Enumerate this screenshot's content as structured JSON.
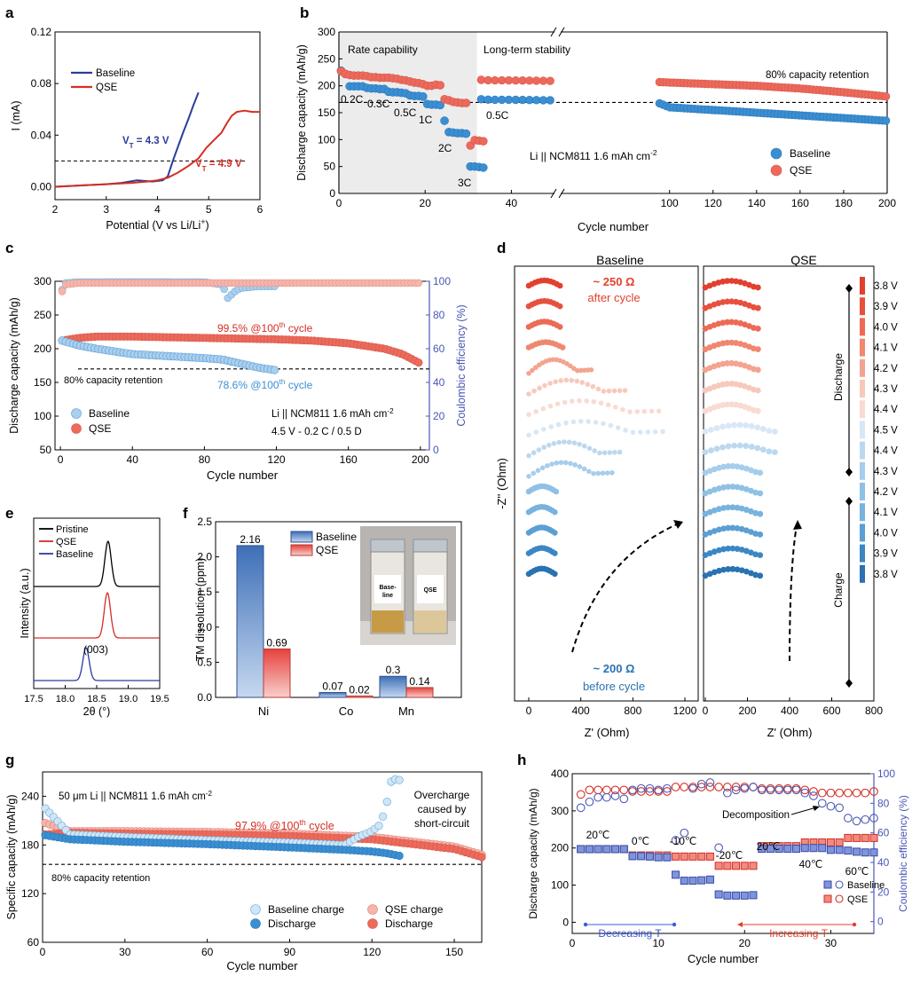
{
  "colors": {
    "baseline": "#3a8fd3",
    "baseline_light": "#a9d0ee",
    "qse": "#ec6a5c",
    "qse_light": "#f6b5ac",
    "navy": "#2b3d9a",
    "red": "#d42e24",
    "shade": "#ececec"
  },
  "chart_data": [
    {
      "panel": "a",
      "type": "line",
      "xlabel": "Potential (V vs Li/Li⁺)",
      "ylabel": "I (mA)",
      "xlim": [
        2,
        6
      ],
      "ylim": [
        -0.01,
        0.12
      ],
      "xticks": [
        2,
        3,
        4,
        5,
        6
      ],
      "yticks": [
        0,
        0.04,
        0.08,
        0.12
      ],
      "ytick_labels": [
        "0.00",
        "0.04",
        "0.08",
        "0.12"
      ],
      "legend": [
        "Baseline",
        "QSE"
      ],
      "threshold_y": 0.02,
      "annotations": [
        "V_T = 4.3 V",
        "V_T = 4.9 V"
      ],
      "ann_prefix": "V",
      "ann_sub": "T",
      "ann_values": [
        " = 4.3 V",
        " = 4.9 V"
      ],
      "series": [
        {
          "name": "Baseline",
          "x": [
            2,
            2.5,
            3,
            3.3,
            3.6,
            3.9,
            4.1,
            4.2,
            4.3,
            4.4,
            4.5,
            4.6,
            4.7,
            4.8
          ],
          "y": [
            0,
            0.001,
            0.002,
            0.003,
            0.005,
            0.004,
            0.005,
            0.008,
            0.02,
            0.031,
            0.042,
            0.052,
            0.063,
            0.073
          ]
        },
        {
          "name": "QSE",
          "x": [
            2,
            2.5,
            3,
            3.5,
            3.8,
            4,
            4.2,
            4.4,
            4.6,
            4.8,
            4.95,
            5.1,
            5.25,
            5.35,
            5.45,
            5.55,
            5.7,
            5.85,
            6
          ],
          "y": [
            0,
            0.001,
            0.002,
            0.003,
            0.004,
            0.005,
            0.007,
            0.011,
            0.016,
            0.022,
            0.03,
            0.036,
            0.042,
            0.049,
            0.055,
            0.058,
            0.059,
            0.058,
            0.058
          ]
        }
      ]
    },
    {
      "panel": "b",
      "type": "scatter",
      "xlabel": "Cycle number",
      "ylabel": "Discharge capacity (mAh/g)",
      "ylim": [
        0,
        300
      ],
      "yticks": [
        0,
        50,
        100,
        150,
        200,
        250,
        300
      ],
      "xticks_left": [
        0,
        20,
        40
      ],
      "xticks_right": [
        100,
        120,
        140,
        160,
        180,
        200
      ],
      "regions": [
        "Rate capability",
        "Long-term stability"
      ],
      "rate_labels": [
        "0.2C",
        "0.3C",
        "0.5C",
        "1C",
        "2C",
        "3C",
        "0.5C"
      ],
      "retention_label": "80% capacity retention",
      "retention_y": 169,
      "cell_label": "Li || NCM811 1.6 mAh cm",
      "cell_sup": "-2",
      "legend": [
        "Baseline",
        "QSE"
      ],
      "rate_series": {
        "Baseline": [
          228,
          222,
          199,
          199,
          199,
          199,
          196,
          195,
          195,
          194,
          194,
          189,
          188,
          188,
          187,
          186,
          182,
          181,
          181,
          180,
          166,
          165,
          165,
          164,
          135,
          114,
          113,
          112,
          112,
          111,
          50,
          50,
          49,
          48
        ],
        "QSE": [
          227,
          222,
          220,
          219,
          219,
          219,
          218,
          216,
          216,
          215,
          215,
          215,
          214,
          213,
          211,
          210,
          208,
          206,
          205,
          203,
          200,
          200,
          202,
          201,
          175,
          173,
          170,
          169,
          168,
          168,
          89,
          99,
          98,
          97
        ]
      },
      "long_term": {
        "Baseline": {
          "cycles": [
            33,
            35,
            40,
            50,
            95,
            97,
            100,
            120,
            140,
            160,
            180,
            200
          ],
          "values": [
            175,
            174,
            174,
            173,
            168,
            165,
            160,
            155,
            150,
            145,
            140,
            135
          ]
        },
        "QSE": {
          "cycles": [
            33,
            35,
            40,
            50,
            95,
            100,
            120,
            140,
            160,
            180,
            200
          ],
          "values": [
            211,
            210,
            210,
            209,
            207,
            206,
            203,
            200,
            195,
            188,
            180
          ]
        }
      }
    },
    {
      "panel": "c",
      "type": "scatter",
      "xlabel": "Cycle number",
      "ylabel": "Discharge capacity (mAh/g)",
      "y2label": "Coulombic efficiency (%)",
      "xlim": [
        0,
        200
      ],
      "ylim": [
        50,
        300
      ],
      "y2lim": [
        0,
        100
      ],
      "xticks": [
        0,
        40,
        80,
        120,
        160,
        200
      ],
      "yticks": [
        50,
        100,
        150,
        200,
        250,
        300
      ],
      "y2ticks": [
        0,
        20,
        40,
        60,
        80,
        100
      ],
      "legend": [
        "Baseline",
        "QSE"
      ],
      "annotations": {
        "qse_retention": "99.5% @100",
        "baseline_retention": "78.6% @100",
        "sup": "th",
        "suffix": " cycle",
        "retention_label": "80% capacity retention"
      },
      "cell_label": "Li || NCM811 1.6 mAh cm",
      "cell_sup": "-2",
      "protocol": "4.5 V - 0.2 C / 0.5 D",
      "retention_y": 170,
      "series": [
        {
          "name": "Baseline capacity",
          "x": [
            1,
            10,
            20,
            30,
            40,
            60,
            80,
            90,
            100,
            110,
            120
          ],
          "y": [
            212,
            205,
            200,
            196,
            192,
            189,
            186,
            184,
            178,
            172,
            168
          ]
        },
        {
          "name": "QSE capacity",
          "x": [
            1,
            10,
            20,
            40,
            60,
            80,
            100,
            120,
            140,
            160,
            180,
            190,
            200
          ],
          "y": [
            212,
            216,
            218,
            218,
            217,
            216,
            215,
            214,
            212,
            208,
            200,
            192,
            178
          ]
        },
        {
          "name": "Baseline CE",
          "x": [
            1,
            3,
            10,
            40,
            80,
            90,
            93,
            95,
            97,
            100,
            110,
            120
          ],
          "y": [
            95,
            99,
            99.5,
            99.6,
            99.5,
            98,
            90,
            92,
            94,
            96,
            97,
            97
          ]
        },
        {
          "name": "QSE CE",
          "x": [
            1,
            3,
            10,
            40,
            80,
            120,
            160,
            200
          ],
          "y": [
            94,
            98,
            99,
            99,
            99,
            99,
            99,
            99
          ]
        }
      ]
    },
    {
      "panel": "d",
      "type": "line",
      "xlabel": "Z' (Ohm)",
      "ylabel": "-Z'' (Ohm)",
      "titles": [
        "Baseline",
        "QSE"
      ],
      "xticks_left": [
        0,
        400,
        800,
        1200
      ],
      "xticks_right": [
        0,
        200,
        400,
        600,
        800
      ],
      "annotations": {
        "top_value": "~ 250 Ω",
        "top_text": "after cycle",
        "bottom_value": "~ 200 Ω",
        "bottom_text": "before cycle"
      },
      "voltages": [
        "3.8 V",
        "3.9 V",
        "4.0 V",
        "4.1 V",
        "4.2 V",
        "4.3 V",
        "4.4 V",
        "4.5 V",
        "4.4 V",
        "4.3 V",
        "4.2 V",
        "4.1 V",
        "4.0 V",
        "3.9 V",
        "3.8 V"
      ],
      "steps": [
        "Discharge",
        "Charge"
      ],
      "baseline_arc_ohm": [
        240,
        240,
        240,
        260,
        480,
        740,
        1000,
        1030,
        700,
        640,
        210,
        200,
        200,
        200,
        200
      ],
      "qse_arc_ohm": [
        250,
        250,
        250,
        250,
        250,
        250,
        250,
        330,
        330,
        260,
        260,
        260,
        260,
        260,
        260
      ]
    },
    {
      "panel": "e",
      "type": "line",
      "xlabel": "2θ (°)",
      "ylabel": "Intensity (a.u.)",
      "xlim": [
        17.5,
        19.5
      ],
      "xticks": [
        17.5,
        18.0,
        18.5,
        19.0,
        19.5
      ],
      "xtick_labels": [
        "17.5",
        "18.0",
        "18.5",
        "19.0",
        "19.5"
      ],
      "legend": [
        "Pristine",
        "QSE",
        "Baseline"
      ],
      "peak_label": "(003)",
      "peak_positions": {
        "Pristine": 18.68,
        "QSE": 18.67,
        "Baseline": 18.33
      }
    },
    {
      "panel": "f",
      "type": "bar",
      "ylabel": "TM dissolution (ppm)",
      "categories": [
        "Ni",
        "Co",
        "Mn"
      ],
      "ylim": [
        0,
        2.5
      ],
      "yticks": [
        0,
        0.5,
        1.0,
        1.5,
        2.0,
        2.5
      ],
      "ytick_labels": [
        "0.0",
        "0.5",
        "1.0",
        "1.5",
        "2.0",
        "2.5"
      ],
      "series": [
        {
          "name": "Baseline",
          "values": [
            2.16,
            0.07,
            0.3
          ]
        },
        {
          "name": "QSE",
          "values": [
            0.69,
            0.02,
            0.14
          ]
        }
      ],
      "value_labels": {
        "Baseline": [
          "2.16",
          "0.07",
          "0.3"
        ],
        "QSE": [
          "0.69",
          "0.02",
          "0.14"
        ]
      },
      "vial_labels": [
        "Base-",
        "line",
        "QSE"
      ]
    },
    {
      "panel": "g",
      "type": "scatter",
      "xlabel": "Cycle number",
      "ylabel": "Specific capacity (mAh/g)",
      "xlim": [
        0,
        160
      ],
      "ylim": [
        60,
        270
      ],
      "xticks": [
        0,
        30,
        60,
        90,
        120,
        150
      ],
      "yticks": [
        60,
        120,
        180,
        240
      ],
      "cell_label": "50 μm Li || NCM811 1.6 mAh cm",
      "cell_sup": "-2",
      "retention_pre": "97.9% @100",
      "retention_sup": "th",
      "retention_post": " cycle",
      "retention_label": "80% capacity retention",
      "retention_y": 156,
      "overcharge_label": [
        "Overcharge",
        "caused by",
        "short-circuit"
      ],
      "legend": [
        "Baseline charge",
        "Discharge",
        "QSE charge",
        "Discharge"
      ],
      "series": [
        {
          "name": "Baseline charge",
          "x": [
            1,
            10,
            30,
            60,
            90,
            110,
            115,
            120,
            123,
            125,
            127,
            129,
            131
          ],
          "y": [
            225,
            193,
            190,
            186,
            183,
            180,
            190,
            197,
            205,
            225,
            258,
            262,
            258
          ]
        },
        {
          "name": "Baseline discharge",
          "x": [
            1,
            10,
            30,
            60,
            90,
            110,
            120,
            125,
            131
          ],
          "y": [
            192,
            187,
            184,
            181,
            177,
            174,
            172,
            170,
            166
          ]
        },
        {
          "name": "QSE charge",
          "x": [
            1,
            10,
            30,
            60,
            90,
            120,
            150,
            160
          ],
          "y": [
            207,
            197,
            197,
            196,
            194,
            190,
            178,
            168
          ]
        },
        {
          "name": "QSE discharge",
          "x": [
            1,
            10,
            30,
            60,
            90,
            120,
            150,
            160
          ],
          "y": [
            193,
            195,
            194,
            193,
            191,
            187,
            175,
            165
          ]
        }
      ]
    },
    {
      "panel": "h",
      "type": "scatter",
      "xlabel": "Cycle number",
      "ylabel": "Discharge capacity (mAh/g)",
      "y2label": "Coulombic efficiency (%)",
      "xlim": [
        0,
        35
      ],
      "ylim": [
        -30,
        400
      ],
      "y2lim": [
        -8,
        100
      ],
      "xticks": [
        0,
        10,
        20,
        30
      ],
      "yticks": [
        0,
        100,
        200,
        300,
        400
      ],
      "y2ticks": [
        0,
        20,
        40,
        60,
        80,
        100
      ],
      "temps": [
        "20℃",
        "0℃",
        "-10℃",
        "-20℃",
        "20℃",
        "40℃",
        "60℃"
      ],
      "arrows": [
        "Decreasing T",
        "Increasing T"
      ],
      "decomposition_label": "Decomposition",
      "legend": [
        "Baseline",
        "QSE"
      ],
      "qse_capacity": [
        197,
        197,
        197,
        197,
        197,
        197,
        180,
        180,
        180,
        180,
        180,
        177,
        177,
        177,
        177,
        177,
        152,
        152,
        152,
        152,
        152,
        205,
        205,
        205,
        205,
        205,
        215,
        215,
        215,
        215,
        215,
        227,
        227,
        227,
        227
      ],
      "baseline_capacity": [
        197,
        197,
        197,
        197,
        197,
        197,
        178,
        178,
        177,
        175,
        175,
        128,
        112,
        112,
        113,
        115,
        75,
        72,
        72,
        72,
        73,
        198,
        198,
        198,
        198,
        198,
        200,
        200,
        200,
        195,
        195,
        193,
        190,
        188,
        188
      ],
      "qse_ce": [
        86,
        89,
        89,
        89,
        89,
        89,
        88,
        88,
        88,
        88,
        88,
        91,
        91,
        91,
        91,
        91,
        91,
        91,
        91,
        91,
        91,
        90,
        90,
        90,
        90,
        90,
        89,
        88,
        87,
        87,
        87,
        87,
        87,
        87,
        88
      ],
      "baseline_ce": [
        77,
        81,
        84,
        84,
        85,
        83,
        89,
        90,
        90,
        89,
        90,
        55,
        60,
        90,
        93,
        94,
        50,
        87,
        89,
        90,
        91,
        89,
        89,
        89,
        89,
        89,
        87,
        85,
        80,
        78,
        77,
        70,
        68,
        69,
        70
      ]
    }
  ],
  "panel_labels": [
    "a",
    "b",
    "c",
    "d",
    "e",
    "f",
    "g",
    "h"
  ]
}
